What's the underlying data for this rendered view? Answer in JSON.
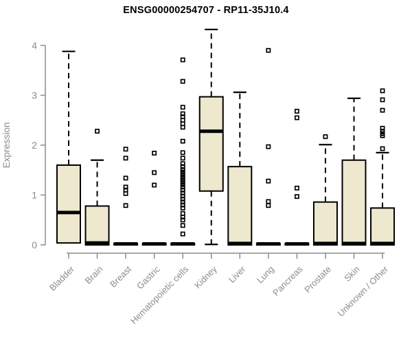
{
  "chart_data": {
    "type": "box",
    "title": "ENSG00000254707 - RP11-35J10.4",
    "xlabel": "",
    "ylabel": "Expression",
    "ylim": [
      0,
      4.35
    ],
    "yticks": [
      0,
      1,
      2,
      3,
      4
    ],
    "grid": false,
    "categories": [
      "Bladder",
      "Brain",
      "Breast",
      "Gastric",
      "Hematopoietic cells",
      "Kidney",
      "Liver",
      "Lung",
      "Pancreas",
      "Prostate",
      "Skin",
      "Unknown / Other"
    ],
    "series": [
      {
        "name": "Bladder",
        "low": 0.04,
        "q1": 0.04,
        "median": 0.65,
        "q3": 1.6,
        "high": 3.88,
        "outliers": []
      },
      {
        "name": "Brain",
        "low": 0.0,
        "q1": 0.0,
        "median": 0.04,
        "q3": 0.78,
        "high": 1.7,
        "outliers": [
          2.28
        ]
      },
      {
        "name": "Breast",
        "low": 0.0,
        "q1": 0.0,
        "median": 0.02,
        "q3": 0.03,
        "high": 0.03,
        "outliers": [
          1.92,
          1.74,
          1.34,
          1.16,
          1.1,
          1.03,
          0.79
        ]
      },
      {
        "name": "Gastric",
        "low": 0.0,
        "q1": 0.0,
        "median": 0.02,
        "q3": 0.03,
        "high": 0.03,
        "outliers": [
          1.84,
          1.45,
          1.2
        ]
      },
      {
        "name": "Hematopoietic cells",
        "low": 0.0,
        "q1": 0.0,
        "median": 0.02,
        "q3": 0.03,
        "high": 0.03,
        "outliers": [
          3.71,
          3.28,
          2.76,
          2.63,
          2.57,
          2.5,
          2.43,
          2.36,
          2.08,
          1.85,
          1.74,
          1.63,
          1.57,
          1.51,
          1.46,
          1.41,
          1.36,
          1.31,
          1.26,
          1.21,
          1.16,
          1.1,
          1.04,
          0.98,
          0.92,
          0.86,
          0.8,
          0.74,
          0.63,
          0.56,
          0.5,
          0.39,
          0.22
        ]
      },
      {
        "name": "Kidney",
        "low": 0.01,
        "q1": 1.08,
        "median": 2.28,
        "q3": 2.97,
        "high": 4.32,
        "outliers": []
      },
      {
        "name": "Liver",
        "low": 0.0,
        "q1": 0.0,
        "median": 0.03,
        "q3": 1.57,
        "high": 3.06,
        "outliers": []
      },
      {
        "name": "Lung",
        "low": 0.0,
        "q1": 0.0,
        "median": 0.02,
        "q3": 0.03,
        "high": 0.03,
        "outliers": [
          3.9,
          1.97,
          1.28,
          0.87,
          0.79
        ]
      },
      {
        "name": "Pancreas",
        "low": 0.0,
        "q1": 0.0,
        "median": 0.02,
        "q3": 0.03,
        "high": 0.03,
        "outliers": [
          2.68,
          2.55,
          1.14,
          0.97
        ]
      },
      {
        "name": "Prostate",
        "low": 0.0,
        "q1": 0.0,
        "median": 0.03,
        "q3": 0.86,
        "high": 2.01,
        "outliers": [
          2.17
        ]
      },
      {
        "name": "Skin",
        "low": 0.0,
        "q1": 0.0,
        "median": 0.03,
        "q3": 1.7,
        "high": 2.94,
        "outliers": []
      },
      {
        "name": "Unknown / Other",
        "low": 0.0,
        "q1": 0.0,
        "median": 0.03,
        "q3": 0.74,
        "high": 1.85,
        "outliers": [
          3.09,
          2.91,
          2.7,
          2.34,
          2.28,
          2.23,
          2.19,
          1.93
        ]
      }
    ]
  },
  "style": {
    "box_fill": "#EDE8CE",
    "box_stroke": "#000000",
    "median_color": "#000000",
    "whisker_color": "#000000",
    "axis_color": "#8C8C8C",
    "tick_label_color": "#8C8C8C",
    "title_color": "#000000",
    "background": "#FFFFFF"
  }
}
